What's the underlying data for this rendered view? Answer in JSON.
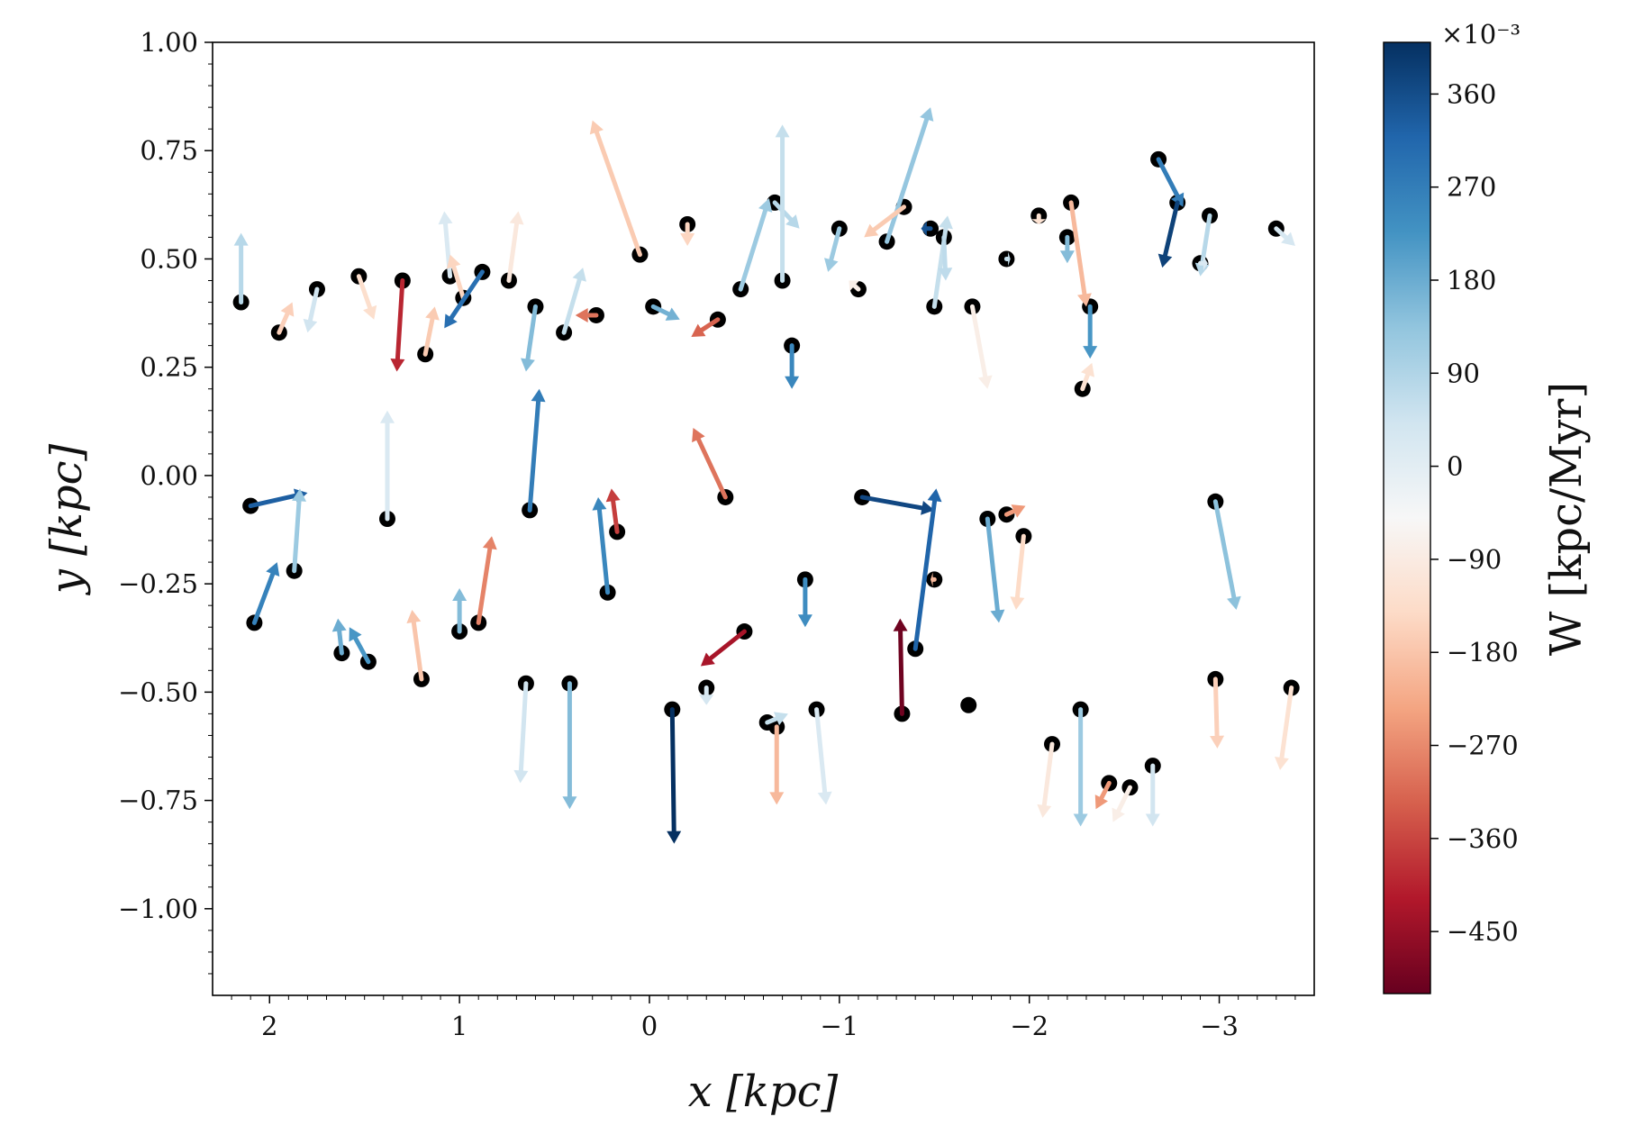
{
  "chart_data": {
    "type": "scatter",
    "subtype": "scatter-with-velocity-vectors",
    "xlabel": "x [kpc]",
    "ylabel": "y [kpc]",
    "xlim": [
      2.3,
      -3.5
    ],
    "ylim": [
      -1.2,
      1.0
    ],
    "x_inverted": true,
    "xticks": [
      2,
      1,
      0,
      -1,
      -2,
      -3
    ],
    "xtick_labels": [
      "2",
      "1",
      "0",
      "−1",
      "−2",
      "−3"
    ],
    "yticks": [
      1.0,
      0.75,
      0.5,
      0.25,
      0.0,
      -0.25,
      -0.5,
      -0.75,
      -1.0
    ],
    "ytick_labels": [
      "1.00",
      "0.75",
      "0.50",
      "0.25",
      "0.00",
      "−0.25",
      "−0.50",
      "−0.75",
      "−1.00"
    ],
    "grid": false,
    "marker_color": "#000000",
    "colorbar": {
      "label": "W [kpc/Myr]",
      "multiplier": "×10⁻³",
      "range": [
        -510,
        410
      ],
      "ticks": [
        360,
        270,
        180,
        90,
        0,
        -90,
        -180,
        -270,
        -360,
        -450
      ],
      "tick_labels": [
        "360",
        "270",
        "180",
        "90",
        "0",
        "−90",
        "−180",
        "−270",
        "−360",
        "−450"
      ],
      "colormap": "RdBu",
      "colors": [
        "#67001f",
        "#b2182b",
        "#d6604d",
        "#f4a582",
        "#fddbc7",
        "#f7f7f7",
        "#d1e5f0",
        "#92c5de",
        "#4393c3",
        "#2166ac",
        "#053061"
      ]
    },
    "points": [
      {
        "x": 2.15,
        "y": 0.4,
        "dx": 0.0,
        "dy": 0.16,
        "w": 80
      },
      {
        "x": 1.95,
        "y": 0.33,
        "dx": -0.07,
        "dy": 0.07,
        "w": -160
      },
      {
        "x": 1.75,
        "y": 0.43,
        "dx": 0.05,
        "dy": -0.1,
        "w": 40
      },
      {
        "x": 1.53,
        "y": 0.46,
        "dx": -0.08,
        "dy": -0.1,
        "w": -130
      },
      {
        "x": 1.3,
        "y": 0.45,
        "dx": 0.03,
        "dy": -0.21,
        "w": -400
      },
      {
        "x": 1.18,
        "y": 0.28,
        "dx": -0.05,
        "dy": 0.11,
        "w": -170
      },
      {
        "x": 1.05,
        "y": 0.46,
        "dx": 0.03,
        "dy": 0.15,
        "w": 20
      },
      {
        "x": 0.98,
        "y": 0.41,
        "dx": 0.07,
        "dy": 0.1,
        "w": -150
      },
      {
        "x": 0.88,
        "y": 0.47,
        "dx": 0.2,
        "dy": -0.13,
        "w": 300
      },
      {
        "x": 0.74,
        "y": 0.45,
        "dx": -0.05,
        "dy": 0.16,
        "w": -100
      },
      {
        "x": 0.6,
        "y": 0.39,
        "dx": 0.05,
        "dy": -0.15,
        "w": 150
      },
      {
        "x": 0.45,
        "y": 0.33,
        "dx": -0.1,
        "dy": 0.15,
        "w": 60
      },
      {
        "x": 0.28,
        "y": 0.37,
        "dx": 0.11,
        "dy": 0.0,
        "w": -300
      },
      {
        "x": 0.05,
        "y": 0.51,
        "dx": 0.25,
        "dy": 0.31,
        "w": -170
      },
      {
        "x": -0.02,
        "y": 0.39,
        "dx": -0.14,
        "dy": -0.03,
        "w": 170
      },
      {
        "x": -0.2,
        "y": 0.58,
        "dx": 0.0,
        "dy": -0.05,
        "w": -150
      },
      {
        "x": -0.36,
        "y": 0.36,
        "dx": 0.14,
        "dy": -0.04,
        "w": -320
      },
      {
        "x": -0.48,
        "y": 0.43,
        "dx": -0.15,
        "dy": 0.21,
        "w": 120
      },
      {
        "x": -0.66,
        "y": 0.63,
        "dx": -0.13,
        "dy": -0.06,
        "w": 80
      },
      {
        "x": -0.7,
        "y": 0.45,
        "dx": 0.0,
        "dy": 0.36,
        "w": 60
      },
      {
        "x": -0.75,
        "y": 0.3,
        "dx": 0.0,
        "dy": -0.1,
        "w": 250
      },
      {
        "x": -1.0,
        "y": 0.57,
        "dx": 0.06,
        "dy": -0.1,
        "w": 120
      },
      {
        "x": -1.1,
        "y": 0.43,
        "dx": 0.05,
        "dy": 0.02,
        "w": -80
      },
      {
        "x": -1.25,
        "y": 0.54,
        "dx": -0.23,
        "dy": 0.31,
        "w": 130
      },
      {
        "x": -1.34,
        "y": 0.62,
        "dx": 0.21,
        "dy": -0.07,
        "w": -170
      },
      {
        "x": -1.48,
        "y": 0.57,
        "dx": 0.05,
        "dy": 0.0,
        "w": 350
      },
      {
        "x": -1.5,
        "y": 0.39,
        "dx": -0.07,
        "dy": 0.21,
        "w": 60
      },
      {
        "x": -1.55,
        "y": 0.55,
        "dx": -0.01,
        "dy": -0.1,
        "w": 70
      },
      {
        "x": -1.7,
        "y": 0.39,
        "dx": -0.08,
        "dy": -0.19,
        "w": -80
      },
      {
        "x": -1.88,
        "y": 0.5,
        "dx": -0.02,
        "dy": 0.0,
        "w": 60
      },
      {
        "x": -2.05,
        "y": 0.6,
        "dx": 0.0,
        "dy": -0.02,
        "w": -120
      },
      {
        "x": -2.2,
        "y": 0.55,
        "dx": 0.0,
        "dy": -0.06,
        "w": 150
      },
      {
        "x": -2.22,
        "y": 0.63,
        "dx": -0.08,
        "dy": -0.24,
        "w": -200
      },
      {
        "x": -2.32,
        "y": 0.39,
        "dx": 0.0,
        "dy": -0.12,
        "w": 220
      },
      {
        "x": -2.28,
        "y": 0.2,
        "dx": -0.05,
        "dy": 0.06,
        "w": -120
      },
      {
        "x": -2.68,
        "y": 0.73,
        "dx": -0.13,
        "dy": -0.11,
        "w": 270
      },
      {
        "x": -2.78,
        "y": 0.63,
        "dx": 0.08,
        "dy": -0.15,
        "w": 380
      },
      {
        "x": -2.95,
        "y": 0.6,
        "dx": 0.05,
        "dy": -0.14,
        "w": 80
      },
      {
        "x": -2.9,
        "y": 0.49,
        "dx": -0.04,
        "dy": 0.0,
        "w": 20
      },
      {
        "x": -3.3,
        "y": 0.57,
        "dx": -0.1,
        "dy": -0.04,
        "w": 30
      },
      {
        "x": 2.1,
        "y": -0.07,
        "dx": -0.3,
        "dy": 0.03,
        "w": 330
      },
      {
        "x": 2.08,
        "y": -0.34,
        "dx": -0.12,
        "dy": 0.14,
        "w": 260
      },
      {
        "x": 1.87,
        "y": -0.22,
        "dx": -0.03,
        "dy": 0.19,
        "w": 120
      },
      {
        "x": 1.62,
        "y": -0.41,
        "dx": 0.02,
        "dy": 0.08,
        "w": 180
      },
      {
        "x": 1.48,
        "y": -0.43,
        "dx": 0.1,
        "dy": 0.08,
        "w": 220
      },
      {
        "x": 1.38,
        "y": -0.1,
        "dx": 0.0,
        "dy": 0.25,
        "w": 20
      },
      {
        "x": 1.2,
        "y": -0.47,
        "dx": 0.05,
        "dy": 0.16,
        "w": -180
      },
      {
        "x": 1.0,
        "y": -0.36,
        "dx": 0.0,
        "dy": 0.1,
        "w": 150
      },
      {
        "x": 0.9,
        "y": -0.34,
        "dx": -0.07,
        "dy": 0.2,
        "w": -280
      },
      {
        "x": 0.65,
        "y": -0.48,
        "dx": 0.03,
        "dy": -0.23,
        "w": 40
      },
      {
        "x": 0.63,
        "y": -0.08,
        "dx": -0.05,
        "dy": 0.28,
        "w": 270
      },
      {
        "x": 0.42,
        "y": -0.48,
        "dx": 0.0,
        "dy": -0.29,
        "w": 150
      },
      {
        "x": 0.22,
        "y": -0.27,
        "dx": 0.05,
        "dy": 0.22,
        "w": 250
      },
      {
        "x": 0.17,
        "y": -0.13,
        "dx": 0.03,
        "dy": 0.1,
        "w": -370
      },
      {
        "x": -0.12,
        "y": -0.54,
        "dx": -0.01,
        "dy": -0.31,
        "w": 450
      },
      {
        "x": -0.3,
        "y": -0.49,
        "dx": 0.0,
        "dy": -0.04,
        "w": 30
      },
      {
        "x": -0.5,
        "y": -0.36,
        "dx": 0.23,
        "dy": -0.08,
        "w": -430
      },
      {
        "x": -0.4,
        "y": -0.05,
        "dx": 0.17,
        "dy": 0.16,
        "w": -300
      },
      {
        "x": -0.62,
        "y": -0.57,
        "dx": -0.11,
        "dy": 0.02,
        "w": 60
      },
      {
        "x": -0.67,
        "y": -0.58,
        "dx": 0.0,
        "dy": -0.18,
        "w": -200
      },
      {
        "x": -0.82,
        "y": -0.24,
        "dx": 0.0,
        "dy": -0.11,
        "w": 240
      },
      {
        "x": -0.88,
        "y": -0.54,
        "dx": -0.05,
        "dy": -0.22,
        "w": 20
      },
      {
        "x": -1.12,
        "y": -0.05,
        "dx": -0.38,
        "dy": -0.03,
        "w": 370
      },
      {
        "x": -1.33,
        "y": -0.55,
        "dx": 0.01,
        "dy": 0.22,
        "w": -500
      },
      {
        "x": -1.4,
        "y": -0.4,
        "dx": -0.11,
        "dy": 0.37,
        "w": 320
      },
      {
        "x": -1.5,
        "y": -0.24,
        "dx": 0.02,
        "dy": 0.0,
        "w": -200
      },
      {
        "x": -1.68,
        "y": -0.53,
        "dx": 0.0,
        "dy": 0.0,
        "w": 150
      },
      {
        "x": -1.78,
        "y": -0.1,
        "dx": -0.06,
        "dy": -0.24,
        "w": 180
      },
      {
        "x": -1.88,
        "y": -0.09,
        "dx": -0.1,
        "dy": 0.02,
        "w": -250
      },
      {
        "x": -1.97,
        "y": -0.14,
        "dx": 0.04,
        "dy": -0.17,
        "w": -140
      },
      {
        "x": -2.12,
        "y": -0.62,
        "dx": 0.05,
        "dy": -0.17,
        "w": -100
      },
      {
        "x": -2.27,
        "y": -0.54,
        "dx": 0.0,
        "dy": -0.27,
        "w": 120
      },
      {
        "x": -2.42,
        "y": -0.71,
        "dx": 0.07,
        "dy": -0.06,
        "w": -250
      },
      {
        "x": -2.53,
        "y": -0.72,
        "dx": 0.09,
        "dy": -0.08,
        "w": -80
      },
      {
        "x": -2.65,
        "y": -0.67,
        "dx": 0.0,
        "dy": -0.14,
        "w": 40
      },
      {
        "x": -2.98,
        "y": -0.06,
        "dx": -0.11,
        "dy": -0.25,
        "w": 140
      },
      {
        "x": -2.98,
        "y": -0.47,
        "dx": -0.01,
        "dy": -0.16,
        "w": -160
      },
      {
        "x": -3.38,
        "y": -0.49,
        "dx": 0.06,
        "dy": -0.19,
        "w": -120
      }
    ]
  }
}
